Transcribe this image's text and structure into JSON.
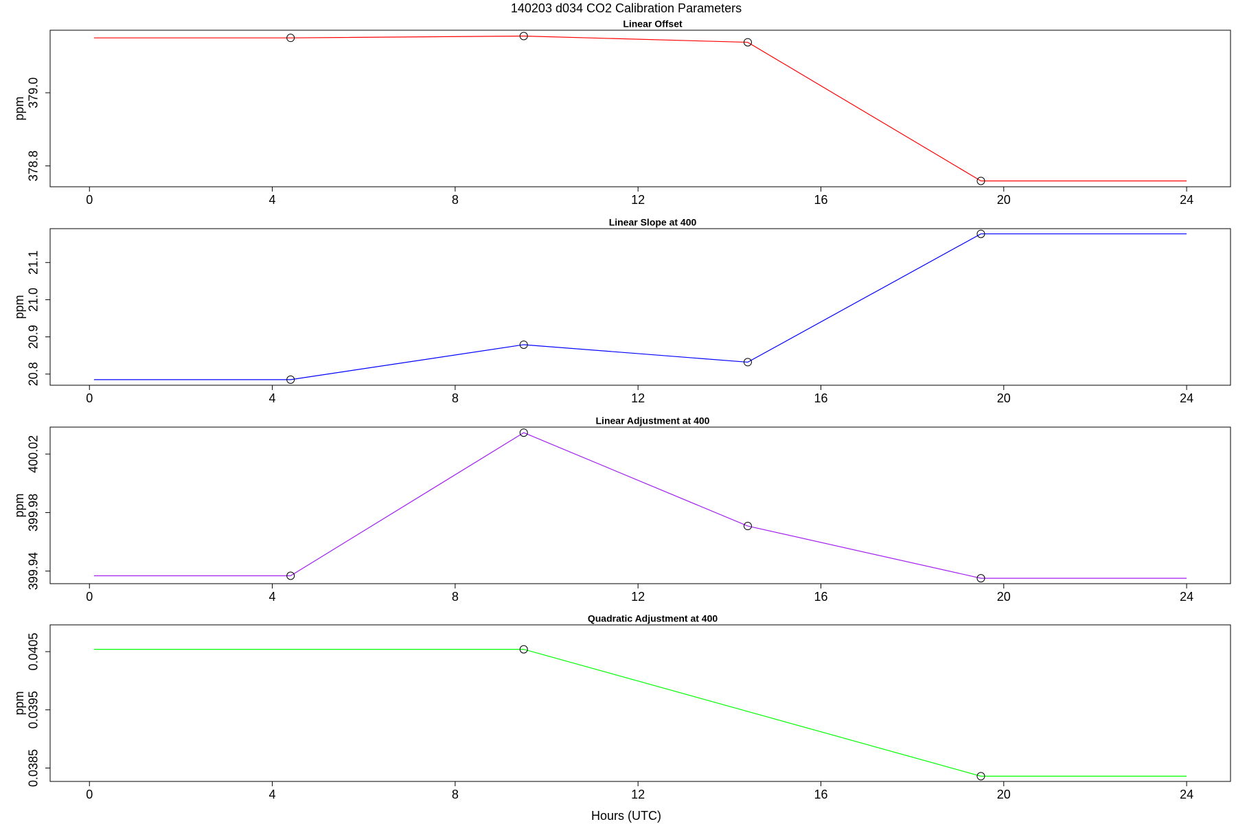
{
  "title": "140203   d034   CO2 Calibration Parameters",
  "xlabel": "Hours (UTC)",
  "chart_data": [
    {
      "type": "line",
      "title": "Linear Offset",
      "ylabel": "ppm",
      "color": "#ff0000",
      "x": [
        0.1,
        4.4,
        9.5,
        14.4,
        19.5,
        24
      ],
      "values": [
        379.15,
        379.15,
        379.155,
        379.138,
        378.759,
        378.759
      ],
      "point_x": [
        4.4,
        9.5,
        14.4,
        19.5
      ],
      "point_values": [
        379.15,
        379.155,
        379.138,
        378.759
      ],
      "xlim": [
        -0.86,
        24.96
      ],
      "xticks": [
        0,
        4,
        8,
        12,
        16,
        20,
        24
      ],
      "ylim": [
        378.743,
        379.171
      ],
      "yticks": [
        378.8,
        {
          "value": 379,
          "label": "379.0"
        }
      ]
    },
    {
      "type": "line",
      "title": "Linear Slope at 400",
      "ylabel": "ppm",
      "color": "#0000ff",
      "x": [
        0.1,
        4.4,
        9.5,
        14.4,
        19.5,
        24
      ],
      "values": [
        20.785,
        20.785,
        20.879,
        20.832,
        21.177,
        21.177
      ],
      "point_x": [
        4.4,
        9.5,
        14.4,
        19.5
      ],
      "point_values": [
        20.785,
        20.879,
        20.832,
        21.177
      ],
      "xlim": [
        -0.86,
        24.96
      ],
      "xticks": [
        0,
        4,
        8,
        12,
        16,
        20,
        24
      ],
      "ylim": [
        20.77,
        21.191
      ],
      "yticks": [
        20.8,
        20.9,
        {
          "value": 21,
          "label": "21.0"
        },
        21.1
      ]
    },
    {
      "type": "line",
      "title": "Linear Adjustment at 400",
      "ylabel": "ppm",
      "color": "#a020f0",
      "x": [
        0.1,
        4.4,
        9.5,
        14.4,
        19.5,
        24
      ],
      "values": [
        399.9368,
        399.9368,
        400.0346,
        399.9708,
        399.9351,
        399.9351
      ],
      "point_x": [
        4.4,
        9.5,
        14.4,
        19.5
      ],
      "point_values": [
        399.9368,
        400.0346,
        399.9708,
        399.9351
      ],
      "xlim": [
        -0.86,
        24.96
      ],
      "xticks": [
        0,
        4,
        8,
        12,
        16,
        20,
        24
      ],
      "ylim": [
        399.9314,
        400.0384
      ],
      "yticks": [
        399.94,
        399.98,
        400.02
      ]
    },
    {
      "type": "line",
      "title": "Quadratic Adjustment at 400",
      "ylabel": "ppm",
      "color": "#00ff00",
      "x": [
        0.1,
        9.5,
        19.5,
        24
      ],
      "values": [
        0.04054,
        0.04054,
        0.03836,
        0.03836
      ],
      "point_x": [
        9.5,
        19.5
      ],
      "point_values": [
        0.04054,
        0.03836
      ],
      "xlim": [
        -0.86,
        24.96
      ],
      "xticks": [
        0,
        4,
        8,
        12,
        16,
        20,
        24
      ],
      "ylim": [
        0.03827,
        0.04096
      ],
      "yticks": [
        0.0385,
        0.0395,
        0.0405
      ]
    }
  ]
}
